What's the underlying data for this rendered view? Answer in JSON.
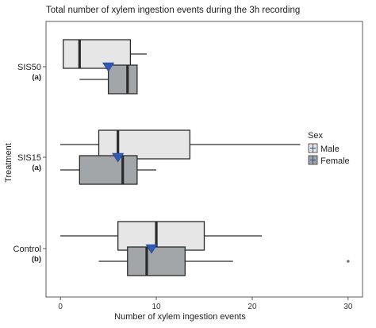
{
  "chart_data": {
    "type": "boxplot",
    "orientation": "horizontal",
    "title": "Total number of xylem ingestion events during the 3h recording",
    "xlabel": "Number of xylem ingestion events",
    "ylabel": "Treatment",
    "xlim": [
      -1.5,
      31.5
    ],
    "xticks": [
      0,
      10,
      20,
      30
    ],
    "grid": false,
    "categories": [
      {
        "name": "SIS50",
        "group": "(a)"
      },
      {
        "name": "SIS15",
        "group": "(a)"
      },
      {
        "name": "Control",
        "group": "(b)"
      }
    ],
    "legend": {
      "title": "Sex",
      "position": "right",
      "entries": [
        {
          "key": "male",
          "label": "Male",
          "color": "#e6e6e6"
        },
        {
          "key": "female",
          "label": "Female",
          "color": "#a2a6a9"
        }
      ]
    },
    "mean_marker_color": "#2f5bb5",
    "boxes": [
      {
        "category": "SIS50",
        "sex": "male",
        "whisker_low": 0.3,
        "q1": 0.3,
        "median": 2,
        "q3": 7.3,
        "whisker_high": 9,
        "outliers": []
      },
      {
        "category": "SIS50",
        "sex": "female",
        "whisker_low": 2,
        "q1": 5,
        "median": 7,
        "q3": 8,
        "whisker_high": 8,
        "outliers": []
      },
      {
        "category": "SIS15",
        "sex": "male",
        "whisker_low": 0,
        "q1": 4,
        "median": 6,
        "q3": 13.5,
        "whisker_high": 25,
        "outliers": []
      },
      {
        "category": "SIS15",
        "sex": "female",
        "whisker_low": 0,
        "q1": 2,
        "median": 6.5,
        "q3": 8,
        "whisker_high": 10,
        "outliers": []
      },
      {
        "category": "Control",
        "sex": "male",
        "whisker_low": 0,
        "q1": 6,
        "median": 10,
        "q3": 15,
        "whisker_high": 21,
        "outliers": []
      },
      {
        "category": "Control",
        "sex": "female",
        "whisker_low": 4,
        "q1": 7,
        "median": 9,
        "q3": 13,
        "whisker_high": 18,
        "outliers": [
          30
        ]
      }
    ],
    "means": [
      {
        "category": "SIS50",
        "value": 5
      },
      {
        "category": "SIS15",
        "value": 6
      },
      {
        "category": "Control",
        "value": 9.5
      }
    ]
  }
}
